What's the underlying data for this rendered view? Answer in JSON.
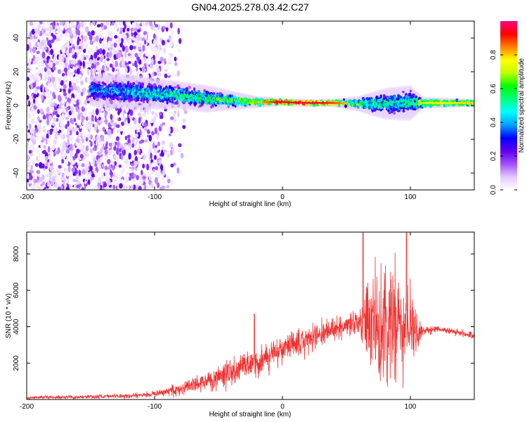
{
  "figure": {
    "title": "GN04.2025.278.03.42.C27"
  },
  "chart_data": [
    {
      "type": "heatmap",
      "title": "GN04.2025.278.03.42.C27",
      "xlabel": "Height of straight line (km)",
      "ylabel": "Frequency (Hz)",
      "xlim": [
        -200,
        150
      ],
      "ylim": [
        -50,
        50
      ],
      "xticks": [
        -200,
        -100,
        0,
        100
      ],
      "yticks": [
        -40,
        -20,
        0,
        20,
        40
      ],
      "colorbar": {
        "label": "Normalized spectral amplitude",
        "range": [
          0,
          1
        ],
        "ticks": [
          0.0,
          0.2,
          0.4,
          0.6,
          0.8
        ],
        "colormap": [
          "#ffffff",
          "#e2c8ff",
          "#a050ff",
          "#6000f0",
          "#0000ff",
          "#00a0ff",
          "#00ffff",
          "#00ff80",
          "#00ff00",
          "#c0ff00",
          "#ffff00",
          "#ff8000",
          "#ff0000",
          "#ff0080"
        ]
      },
      "ridge": {
        "description": "central frequency band of high amplitude",
        "x": [
          -150,
          -120,
          -100,
          -80,
          -60,
          -40,
          -20,
          0,
          20,
          40,
          60,
          80,
          100,
          110,
          150
        ],
        "center_hz": [
          9,
          8,
          7,
          6,
          4,
          3,
          2,
          2,
          1.5,
          1.5,
          1,
          1,
          1.5,
          1.5,
          1.5
        ],
        "width_hz": [
          8,
          9,
          8,
          7,
          7,
          5,
          3,
          2,
          2,
          2,
          4,
          8,
          9,
          3,
          2
        ],
        "peak_amplitude": [
          0.4,
          0.45,
          0.55,
          0.6,
          0.6,
          0.65,
          0.8,
          0.95,
          0.95,
          0.9,
          0.7,
          0.55,
          0.55,
          0.75,
          0.8
        ]
      },
      "noise_region": {
        "x_range": [
          -200,
          -85
        ],
        "amplitude": [
          0.02,
          0.25
        ]
      }
    },
    {
      "type": "line",
      "xlabel": "Height of straight line (km)",
      "ylabel": "SNR (10 * v/v)",
      "xlim": [
        -200,
        150
      ],
      "ylim": [
        0,
        9200
      ],
      "xticks": [
        -200,
        -100,
        0,
        100
      ],
      "yticks": [
        2000,
        4000,
        6000,
        8000
      ],
      "series": [
        {
          "name": "SNR",
          "color": "#ee3333",
          "trend_x": [
            -200,
            -150,
            -120,
            -100,
            -80,
            -60,
            -40,
            -20,
            0,
            20,
            40,
            50,
            60,
            70,
            80,
            90,
            100,
            110,
            120,
            150
          ],
          "trend_y": [
            100,
            150,
            200,
            300,
            600,
            1000,
            1500,
            2100,
            2700,
            3300,
            3900,
            4100,
            4200,
            4000,
            3900,
            3800,
            3700,
            3800,
            3900,
            3500
          ],
          "noise_amp": [
            80,
            100,
            150,
            200,
            400,
            550,
            800,
            900,
            850,
            800,
            650,
            650,
            800,
            3000,
            3500,
            3500,
            3000,
            300,
            200,
            200
          ],
          "spike_peaks": [
            {
              "x": -22,
              "y": 4700
            },
            {
              "x": 63,
              "y": 9200
            },
            {
              "x": 97,
              "y": 9200
            }
          ]
        }
      ]
    }
  ]
}
